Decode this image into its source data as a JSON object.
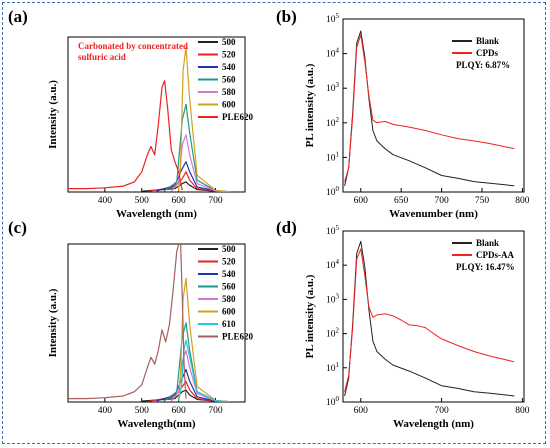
{
  "chart_data": [
    {
      "type": "line",
      "panel": "(a)",
      "xlabel": "Wavelength (nm)",
      "ylabel": "Intensity (a.u.)",
      "xlim": [
        300,
        780
      ],
      "xticks": [
        "400",
        "500",
        "600",
        "700"
      ],
      "annotation": [
        "Carbonated by concentrated",
        "sulfuric acid"
      ],
      "annotation_color": "#ee2222",
      "legend_position": "top-right",
      "series": [
        {
          "name": "500",
          "color": "#222222",
          "x": [
            500,
            590,
            610,
            620,
            630,
            650,
            700,
            740
          ],
          "y": [
            0.005,
            0.02,
            0.05,
            0.06,
            0.04,
            0.015,
            0.005,
            0.002
          ]
        },
        {
          "name": "520",
          "color": "#ee2222",
          "x": [
            520,
            590,
            610,
            620,
            630,
            650,
            700,
            740
          ],
          "y": [
            0.005,
            0.03,
            0.08,
            0.12,
            0.07,
            0.02,
            0.005,
            0.002
          ]
        },
        {
          "name": "540",
          "color": "#2233bb",
          "x": [
            540,
            590,
            610,
            620,
            630,
            650,
            700,
            740
          ],
          "y": [
            0.005,
            0.04,
            0.14,
            0.18,
            0.12,
            0.03,
            0.006,
            0.002
          ]
        },
        {
          "name": "560",
          "color": "#1a9a8a",
          "x": [
            560,
            595,
            610,
            620,
            630,
            650,
            700,
            740
          ],
          "y": [
            0.005,
            0.06,
            0.43,
            0.52,
            0.35,
            0.07,
            0.008,
            0.002
          ]
        },
        {
          "name": "580",
          "color": "#d07ad0",
          "x": [
            580,
            600,
            610,
            620,
            630,
            650,
            700,
            740
          ],
          "y": [
            0.005,
            0.06,
            0.28,
            0.34,
            0.22,
            0.05,
            0.006,
            0.002
          ]
        },
        {
          "name": "600",
          "color": "#d4a020",
          "x": [
            600,
            605,
            612,
            620,
            630,
            650,
            700,
            740
          ],
          "y": [
            0.005,
            0.15,
            0.72,
            0.86,
            0.55,
            0.1,
            0.01,
            0.002
          ]
        },
        {
          "name": "PLE620",
          "color": "#ee2222",
          "x": [
            300,
            350,
            400,
            450,
            480,
            500,
            515,
            525,
            535,
            545,
            555,
            562,
            570,
            580,
            590,
            600,
            605,
            610
          ],
          "y": [
            0.02,
            0.02,
            0.025,
            0.035,
            0.06,
            0.12,
            0.22,
            0.27,
            0.22,
            0.4,
            0.62,
            0.66,
            0.5,
            0.25,
            0.18,
            0.12,
            0.06,
            0.01
          ]
        }
      ]
    },
    {
      "type": "line",
      "panel": "(b)",
      "xlabel": "Wavenumber (nm)",
      "ylabel": "PL intensity (a.u.)",
      "ylog": true,
      "xlim": [
        578,
        802
      ],
      "ylim": [
        1,
        100000
      ],
      "xticks": [
        "600",
        "650",
        "700",
        "750",
        "800"
      ],
      "yticks": [
        1,
        10,
        100,
        1000,
        10000,
        100000
      ],
      "legend_position": "top-right",
      "legend": [
        {
          "name": "Blank",
          "color": "#222222"
        },
        {
          "name": "CPDs",
          "color": "#ee2222"
        }
      ],
      "plqy": "PLQY: 6.87%",
      "series": [
        {
          "name": "Blank",
          "color": "#222222",
          "x": [
            580,
            585,
            590,
            595,
            600,
            605,
            610,
            615,
            620,
            630,
            640,
            660,
            680,
            700,
            720,
            740,
            760,
            780,
            790
          ],
          "y": [
            1.5,
            5,
            200,
            20000,
            45000,
            8000,
            500,
            60,
            30,
            18,
            12,
            8,
            5,
            3,
            2.5,
            2,
            1.8,
            1.6,
            1.5
          ]
        },
        {
          "name": "CPDs",
          "color": "#ee2222",
          "x": [
            580,
            585,
            590,
            595,
            600,
            605,
            610,
            615,
            620,
            630,
            640,
            660,
            680,
            700,
            720,
            740,
            760,
            780,
            790
          ],
          "y": [
            2,
            5,
            150,
            15000,
            35000,
            6000,
            600,
            120,
            100,
            110,
            90,
            75,
            60,
            45,
            35,
            30,
            25,
            20,
            18
          ]
        }
      ]
    },
    {
      "type": "line",
      "panel": "(c)",
      "xlabel": "Wavelength(nm)",
      "ylabel": "Intensity (a.u.)",
      "xlim": [
        300,
        780
      ],
      "xticks": [
        "400",
        "500",
        "600",
        "700"
      ],
      "legend_position": "top-right",
      "series": [
        {
          "name": "500",
          "color": "#222222",
          "x": [
            500,
            590,
            610,
            620,
            630,
            650,
            700,
            740
          ],
          "y": [
            0.005,
            0.02,
            0.06,
            0.07,
            0.04,
            0.015,
            0.005,
            0.002
          ]
        },
        {
          "name": "520",
          "color": "#ee2222",
          "x": [
            520,
            590,
            610,
            620,
            630,
            650,
            700,
            740
          ],
          "y": [
            0.005,
            0.03,
            0.09,
            0.12,
            0.07,
            0.02,
            0.005,
            0.002
          ]
        },
        {
          "name": "540",
          "color": "#2233bb",
          "x": [
            540,
            590,
            610,
            620,
            630,
            650,
            700,
            740
          ],
          "y": [
            0.005,
            0.04,
            0.14,
            0.19,
            0.12,
            0.03,
            0.006,
            0.002
          ]
        },
        {
          "name": "560",
          "color": "#1a9a8a",
          "x": [
            560,
            595,
            610,
            620,
            630,
            650,
            700,
            740
          ],
          "y": [
            0.005,
            0.06,
            0.38,
            0.46,
            0.3,
            0.06,
            0.008,
            0.002
          ]
        },
        {
          "name": "580",
          "color": "#d07ad0",
          "x": [
            580,
            600,
            610,
            620,
            630,
            650,
            700,
            740
          ],
          "y": [
            0.005,
            0.06,
            0.24,
            0.3,
            0.2,
            0.05,
            0.006,
            0.002
          ]
        },
        {
          "name": "600",
          "color": "#d4a020",
          "x": [
            600,
            605,
            612,
            620,
            630,
            650,
            700,
            740
          ],
          "y": [
            0.005,
            0.15,
            0.6,
            0.72,
            0.45,
            0.09,
            0.01,
            0.002
          ]
        },
        {
          "name": "610",
          "color": "#22c8d8",
          "x": [
            600,
            608,
            614,
            620,
            630,
            650,
            700,
            740
          ],
          "y": [
            0.005,
            0.1,
            0.3,
            0.36,
            0.26,
            0.06,
            0.008,
            0.002
          ]
        },
        {
          "name": "PLE620",
          "color": "#a56060",
          "x": [
            300,
            350,
            400,
            450,
            480,
            500,
            515,
            525,
            535,
            545,
            555,
            565,
            575,
            585,
            595,
            605,
            610,
            615,
            620
          ],
          "y": [
            0.02,
            0.02,
            0.025,
            0.035,
            0.06,
            0.1,
            0.2,
            0.26,
            0.22,
            0.3,
            0.42,
            0.35,
            0.45,
            0.65,
            0.88,
            0.95,
            0.6,
            0.2,
            0.02
          ]
        }
      ]
    },
    {
      "type": "line",
      "panel": "(d)",
      "xlabel": "Wavelength (nm)",
      "ylabel": "PL intensity (a.u.)",
      "ylog": true,
      "xlim": [
        578,
        802
      ],
      "ylim": [
        1,
        100000
      ],
      "xticks": [
        "600",
        "700",
        "800"
      ],
      "yticks": [
        1,
        10,
        100,
        1000,
        10000,
        100000
      ],
      "legend_position": "top-right",
      "legend": [
        {
          "name": "Blank",
          "color": "#222222"
        },
        {
          "name": "CPDs-AA",
          "color": "#ee2222"
        }
      ],
      "plqy": "PLQY: 16.47%",
      "series": [
        {
          "name": "Blank",
          "color": "#222222",
          "x": [
            580,
            585,
            590,
            595,
            600,
            605,
            610,
            615,
            620,
            630,
            640,
            660,
            680,
            700,
            720,
            740,
            760,
            780,
            790
          ],
          "y": [
            1.5,
            5,
            200,
            22000,
            50000,
            9000,
            500,
            60,
            30,
            18,
            12,
            8,
            5,
            3,
            2.5,
            2,
            1.8,
            1.6,
            1.5
          ]
        },
        {
          "name": "CPDs-AA",
          "color": "#ee2222",
          "x": [
            580,
            585,
            590,
            595,
            600,
            605,
            610,
            615,
            620,
            630,
            640,
            650,
            660,
            670,
            680,
            690,
            700,
            720,
            740,
            760,
            780,
            790
          ],
          "y": [
            2,
            6,
            150,
            15000,
            30000,
            5000,
            600,
            300,
            350,
            380,
            330,
            250,
            180,
            170,
            150,
            100,
            70,
            45,
            30,
            22,
            17,
            15
          ]
        }
      ]
    }
  ]
}
